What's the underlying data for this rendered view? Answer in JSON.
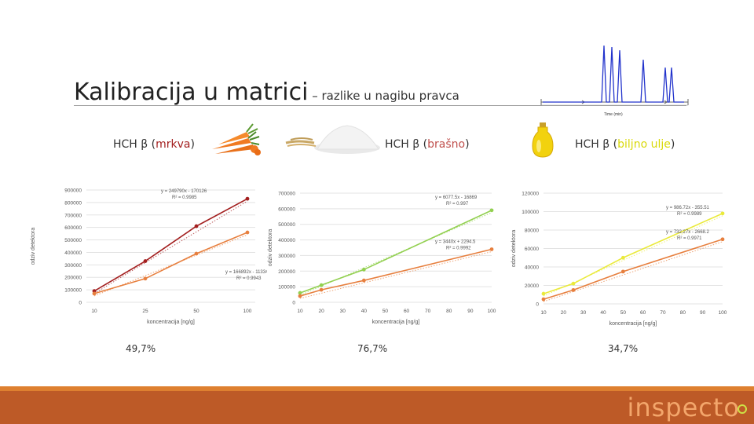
{
  "slide": {
    "title_main": "Kalibracija u matrici",
    "title_sub": " – razlike u nagibu pravca",
    "logo": "inspecto",
    "chromatogram_axis_label": "Time (min)",
    "colors": {
      "footer": "#bd5a27",
      "footer_top": "#de8030",
      "logo_text": "#f3a66b",
      "logo_dot": "#cde246",
      "dark_red": "#a31f1f",
      "orange": "#e77f3e",
      "green": "#92d050",
      "yellow": "#eaea3b",
      "chromatogram": "#2233cc"
    }
  },
  "panels": [
    {
      "label_prefix": "HCH β (",
      "label_matrix": "mrkva",
      "label_suffix": ")",
      "matrix_color": "#a31f1f",
      "image_icon": "carrot-icon",
      "percent": "49,7%"
    },
    {
      "label_prefix": "HCH β (",
      "label_matrix": "brašno",
      "label_suffix": ")",
      "matrix_color": "#c0504d",
      "image_icon": "flour-icon",
      "percent": "76,7%"
    },
    {
      "label_prefix": "HCH β (",
      "label_matrix": "biljno ulje",
      "label_suffix": ")",
      "matrix_color": "#d9d90a",
      "image_icon": "oil-bottle-icon",
      "percent": "34,7%"
    }
  ],
  "chart_data": [
    {
      "type": "line",
      "xlabel": "koncentracija [ng/g]",
      "ylabel": "odziv detektora",
      "x_ticks": [
        "10",
        "25",
        "50",
        "100"
      ],
      "x_scale": "categorical",
      "ylim": [
        0,
        900000
      ],
      "y_ticks": [
        "0",
        "100000",
        "200000",
        "300000",
        "400000",
        "500000",
        "600000",
        "700000",
        "800000",
        "900000"
      ],
      "grid": true,
      "series": [
        {
          "color": "#a31f1f",
          "values": [
            90000,
            330000,
            610000,
            830000
          ],
          "equation": "y = 249790x - 170126",
          "r2": "R² = 0.9985"
        },
        {
          "color": "#e77f3e",
          "values": [
            70000,
            190000,
            390000,
            560000
          ],
          "equation": "y = 166892x - 11334",
          "r2": "R² = 0.9943"
        }
      ]
    },
    {
      "type": "line",
      "xlabel": "koncentracija [ng/g]",
      "ylabel": "odziv detektora",
      "x": [
        10,
        20,
        40,
        100
      ],
      "x_ticks": [
        "10",
        "20",
        "30",
        "40",
        "50",
        "60",
        "70",
        "80",
        "90",
        "100"
      ],
      "xlim": [
        10,
        100
      ],
      "ylim": [
        0,
        700000
      ],
      "y_ticks": [
        "0",
        "100000",
        "200000",
        "300000",
        "400000",
        "500000",
        "600000",
        "700000"
      ],
      "grid": true,
      "series": [
        {
          "color": "#92d050",
          "values": [
            60000,
            110000,
            210000,
            590000
          ],
          "equation": "y = 6077.5x - 16869",
          "r2": "R² = 0.997"
        },
        {
          "color": "#e77f3e",
          "values": [
            40000,
            80000,
            140000,
            340000
          ],
          "equation": "y = 3440x + 2294.5",
          "r2": "R² = 0.9992"
        }
      ]
    },
    {
      "type": "line",
      "xlabel": "koncentracija [ng/g]",
      "ylabel": "odziv detektora",
      "x": [
        10,
        25,
        50,
        100
      ],
      "x_ticks": [
        "10",
        "20",
        "30",
        "40",
        "50",
        "60",
        "70",
        "80",
        "90",
        "100"
      ],
      "xlim": [
        10,
        100
      ],
      "ylim": [
        0,
        120000
      ],
      "y_ticks": [
        "0",
        "20000",
        "40000",
        "60000",
        "80000",
        "100000",
        "120000"
      ],
      "grid": true,
      "series": [
        {
          "color": "#eaea3b",
          "values": [
            11000,
            22000,
            50000,
            98000
          ],
          "equation": "y = 986.72x - 355.51",
          "r2": "R² = 0.9989"
        },
        {
          "color": "#e77f3e",
          "values": [
            5000,
            15000,
            35000,
            70000
          ],
          "equation": "y = 732.27x - 2668.2",
          "r2": "R² = 0.9971"
        }
      ]
    }
  ]
}
